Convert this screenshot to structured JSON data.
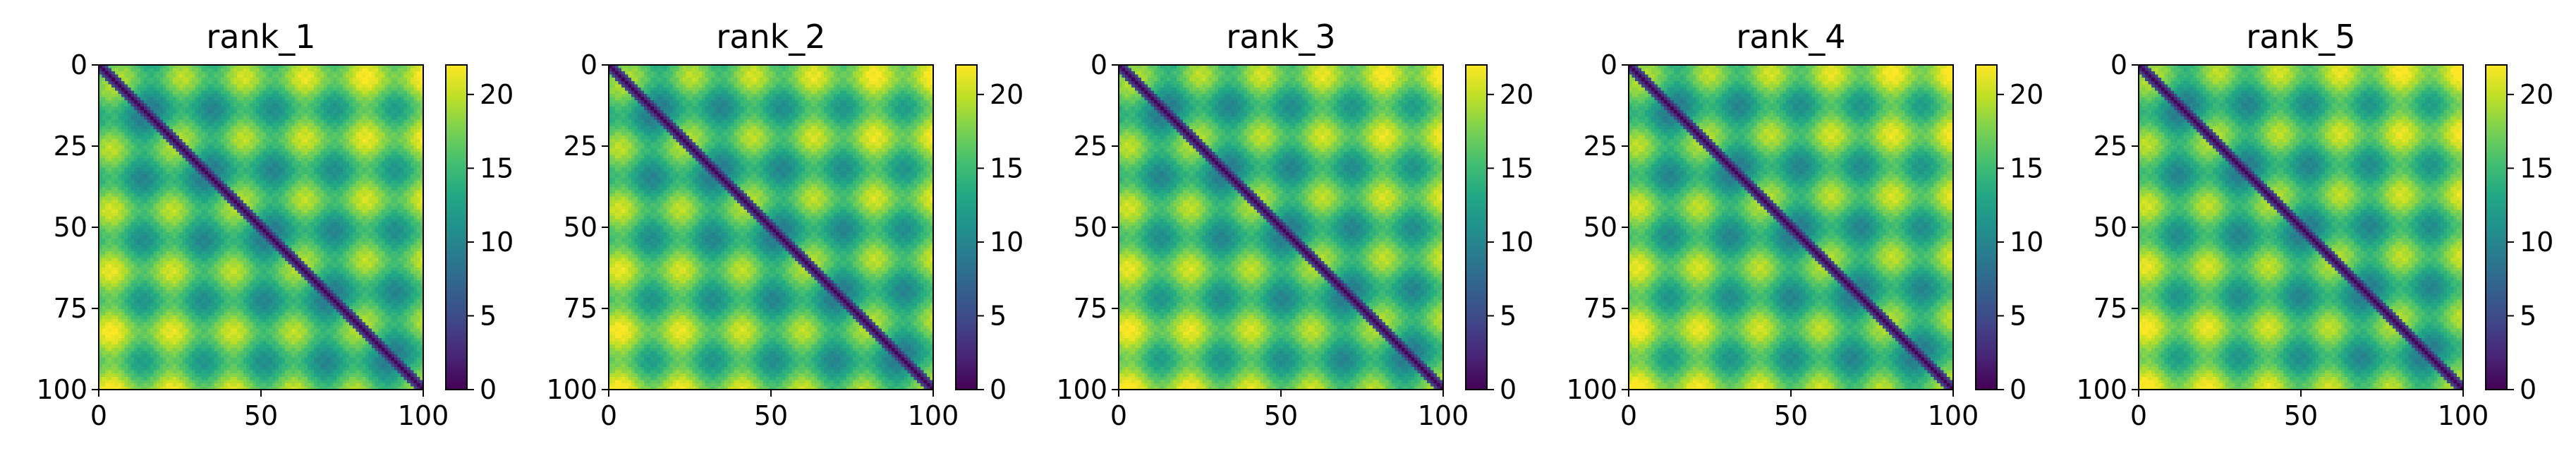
{
  "chart_data": [
    {
      "type": "heatmap",
      "title": "rank_1",
      "matrix_size": 101,
      "xticks": [
        0,
        50,
        100
      ],
      "yticks": [
        0,
        25,
        50,
        75,
        100
      ],
      "colorbar_ticks": [
        0,
        5,
        10,
        15,
        20
      ],
      "vmin": 0,
      "vmax": 22,
      "colormap": "viridis",
      "xlabel": "",
      "ylabel": ""
    },
    {
      "type": "heatmap",
      "title": "rank_2",
      "matrix_size": 101,
      "xticks": [
        0,
        50,
        100
      ],
      "yticks": [
        0,
        25,
        50,
        75,
        100
      ],
      "colorbar_ticks": [
        0,
        5,
        10,
        15,
        20
      ],
      "vmin": 0,
      "vmax": 22,
      "colormap": "viridis",
      "xlabel": "",
      "ylabel": ""
    },
    {
      "type": "heatmap",
      "title": "rank_3",
      "matrix_size": 101,
      "xticks": [
        0,
        50,
        100
      ],
      "yticks": [
        0,
        25,
        50,
        75,
        100
      ],
      "colorbar_ticks": [
        0,
        5,
        10,
        15,
        20
      ],
      "vmin": 0,
      "vmax": 22,
      "colormap": "viridis",
      "xlabel": "",
      "ylabel": ""
    },
    {
      "type": "heatmap",
      "title": "rank_4",
      "matrix_size": 101,
      "xticks": [
        0,
        50,
        100
      ],
      "yticks": [
        0,
        25,
        50,
        75,
        100
      ],
      "colorbar_ticks": [
        0,
        5,
        10,
        15,
        20
      ],
      "vmin": 0,
      "vmax": 22,
      "colormap": "viridis",
      "xlabel": "",
      "ylabel": ""
    },
    {
      "type": "heatmap",
      "title": "rank_5",
      "matrix_size": 101,
      "xticks": [
        0,
        50,
        100
      ],
      "yticks": [
        0,
        25,
        50,
        75,
        100
      ],
      "colorbar_ticks": [
        0,
        5,
        10,
        15,
        20
      ],
      "vmin": 0,
      "vmax": 22,
      "colormap": "viridis",
      "xlabel": "",
      "ylabel": ""
    }
  ]
}
